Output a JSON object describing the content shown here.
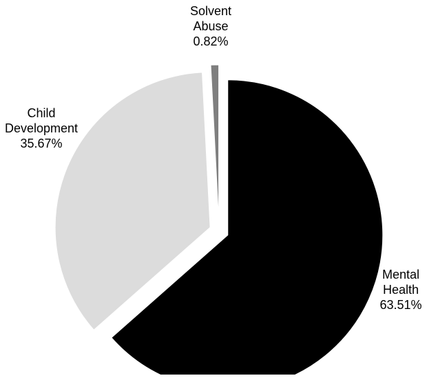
{
  "chart_data": {
    "type": "pie",
    "title": "",
    "slices": [
      {
        "label_lines": [
          "Mental",
          "Health"
        ],
        "value_label": "63.51%",
        "value": 63.51,
        "color": "#000000"
      },
      {
        "label_lines": [
          "Child",
          "Development"
        ],
        "value_label": "35.67%",
        "value": 35.67,
        "color": "#dcdcdc"
      },
      {
        "label_lines": [
          "Solvent",
          "Abuse"
        ],
        "value_label": "0.82%",
        "value": 0.82,
        "color": "#7f7f7f"
      }
    ],
    "exploded": true,
    "legend": "none"
  }
}
